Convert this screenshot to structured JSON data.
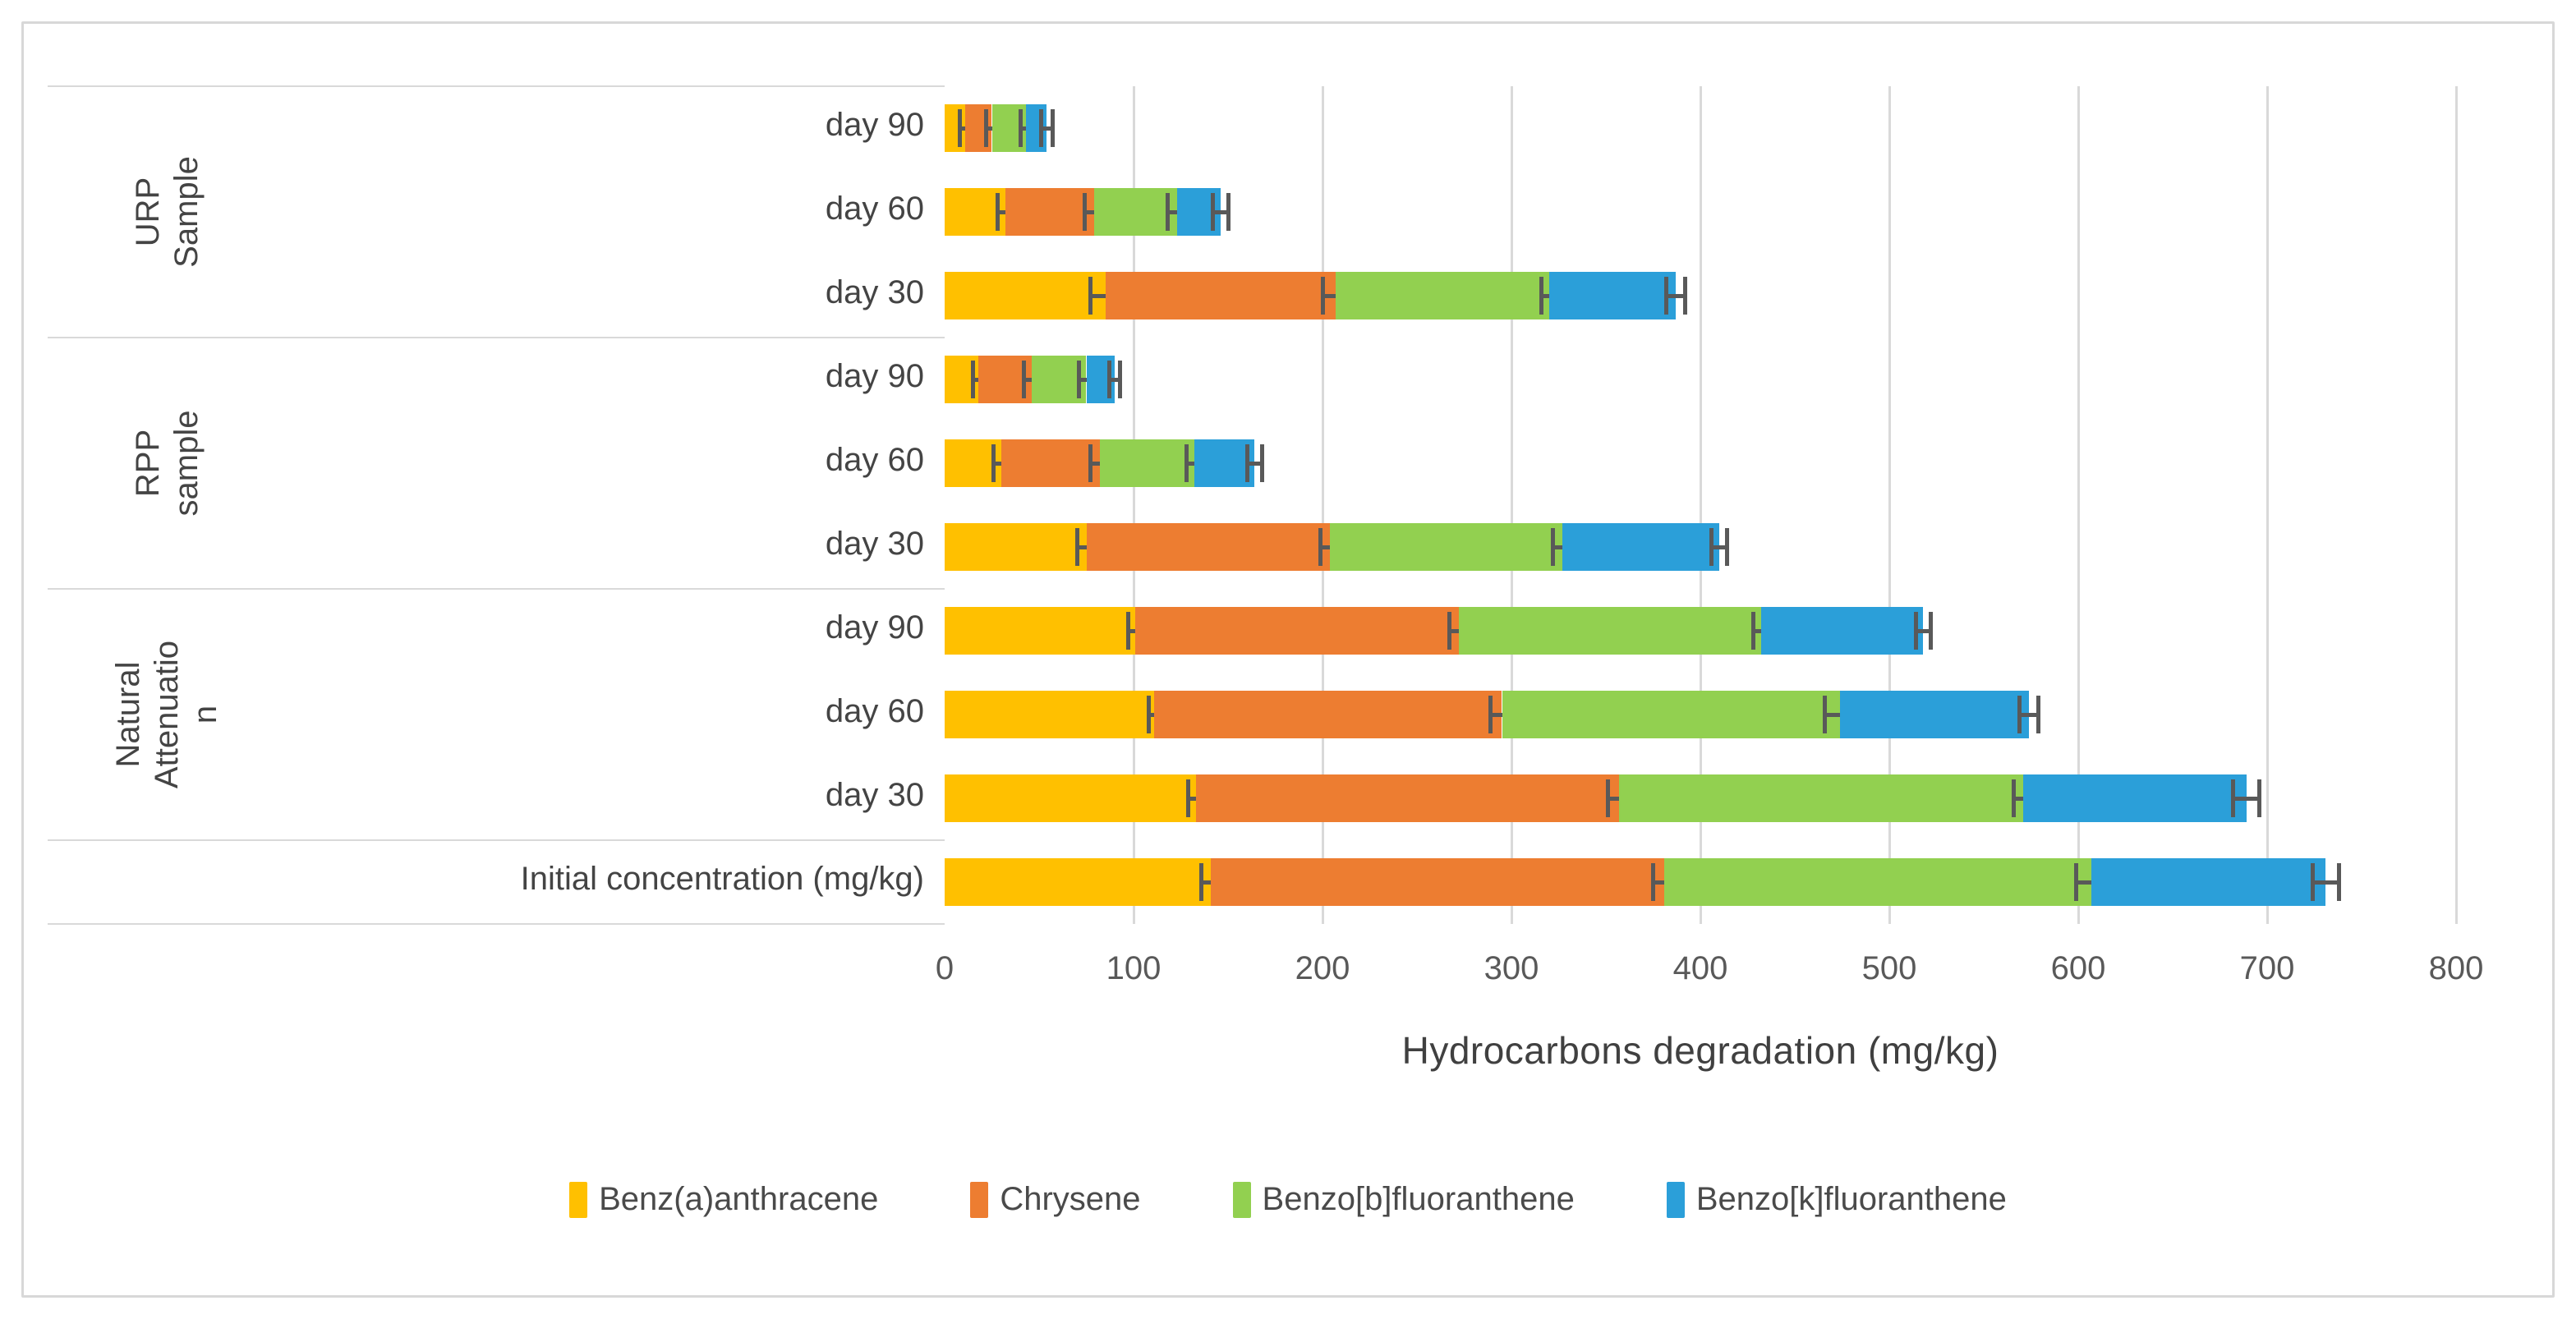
{
  "chart_data": {
    "type": "bar",
    "orientation": "horizontal",
    "stacked": true,
    "title": "",
    "xlabel": "Hydrocarbons degradation (mg/kg)",
    "ylabel": "",
    "xlim": [
      0,
      800
    ],
    "xticks": [
      0,
      100,
      200,
      300,
      400,
      500,
      600,
      700,
      800
    ],
    "grid": true,
    "error_bars": true,
    "legend_position": "bottom",
    "series": [
      {
        "name": "Benz(a)anthracene",
        "color": "#FFC000"
      },
      {
        "name": "Chrysene",
        "color": "#ED7D31"
      },
      {
        "name": "Benzo[b]fluoranthene",
        "color": "#92D050"
      },
      {
        "name": "Benzo[k]fluoranthene",
        "color": "#2B9FD9"
      }
    ],
    "groups": [
      {
        "label": "URP Sample",
        "label_lines": "URP\nSample",
        "rows": [
          {
            "label": "day 90",
            "values": [
              11,
              14,
              18,
              11
            ],
            "errors": [
              3,
              3,
              3,
              3
            ]
          },
          {
            "label": "day 60",
            "values": [
              32,
              47,
              44,
              23
            ],
            "errors": [
              4,
              5,
              5,
              4
            ]
          },
          {
            "label": "day 30",
            "values": [
              85,
              122,
              113,
              67
            ],
            "errors": [
              8,
              7,
              4,
              5
            ]
          }
        ]
      },
      {
        "label": "RPP sample",
        "label_lines": "RPP\nsample",
        "rows": [
          {
            "label": "day 90",
            "values": [
              18,
              28,
              29,
              15
            ],
            "errors": [
              3,
              4,
              4,
              3
            ]
          },
          {
            "label": "day 60",
            "values": [
              30,
              52,
              50,
              32
            ],
            "errors": [
              4,
              5,
              4,
              4
            ]
          },
          {
            "label": "day 30",
            "values": [
              75,
              129,
              123,
              83
            ],
            "errors": [
              5,
              5,
              5,
              4
            ]
          }
        ]
      },
      {
        "label": "Natural Attenuation",
        "label_lines": "Natural\nAttenuatio\nn",
        "rows": [
          {
            "label": "day 90",
            "values": [
              101,
              171,
              160,
              86
            ],
            "errors": [
              4,
              5,
              4,
              4
            ]
          },
          {
            "label": "day 60",
            "values": [
              111,
              184,
              179,
              100
            ],
            "errors": [
              3,
              6,
              8,
              5
            ]
          },
          {
            "label": "day 30",
            "values": [
              133,
              224,
              214,
              118
            ],
            "errors": [
              4,
              6,
              5,
              7
            ]
          }
        ]
      },
      {
        "label": "",
        "label_lines": "",
        "rows": [
          {
            "label": "Initial concentration (mg/kg)",
            "values": [
              141,
              240,
              226,
              124
            ],
            "errors": [
              5,
              6,
              8,
              7
            ]
          }
        ]
      }
    ]
  },
  "styles": {
    "gridline_color": "#D9D9D9",
    "divider_color": "#D9D9D9",
    "error_bar_color": "#595959",
    "text_color": "#444444",
    "frame_color": "#D8D8D8"
  }
}
